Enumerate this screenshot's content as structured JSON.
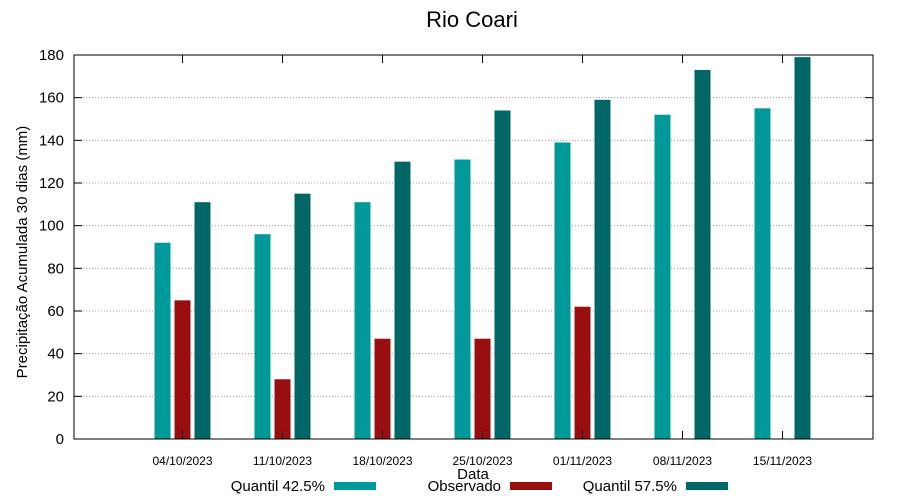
{
  "chart_data": {
    "type": "bar",
    "title": "Rio Coari",
    "xlabel": "Data",
    "ylabel": "Precipitação Acumulada 30 dias (mm)",
    "ylim": [
      0,
      180
    ],
    "yticks": [
      0,
      20,
      40,
      60,
      80,
      100,
      120,
      140,
      160,
      180
    ],
    "grid": true,
    "legend_position": "bottom",
    "categories": [
      "04/10/2023",
      "11/10/2023",
      "18/10/2023",
      "25/10/2023",
      "01/11/2023",
      "08/11/2023",
      "15/11/2023"
    ],
    "series": [
      {
        "name": "Quantil 42.5%",
        "color": "#009999",
        "values": [
          92,
          96,
          111,
          131,
          139,
          152,
          155
        ]
      },
      {
        "name": "Observado",
        "color": "#990f0f",
        "values": [
          65,
          28,
          47,
          47,
          62,
          null,
          null
        ]
      },
      {
        "name": "Quantil 57.5%",
        "color": "#006666",
        "values": [
          111,
          115,
          130,
          154,
          159,
          173,
          179
        ]
      }
    ]
  }
}
